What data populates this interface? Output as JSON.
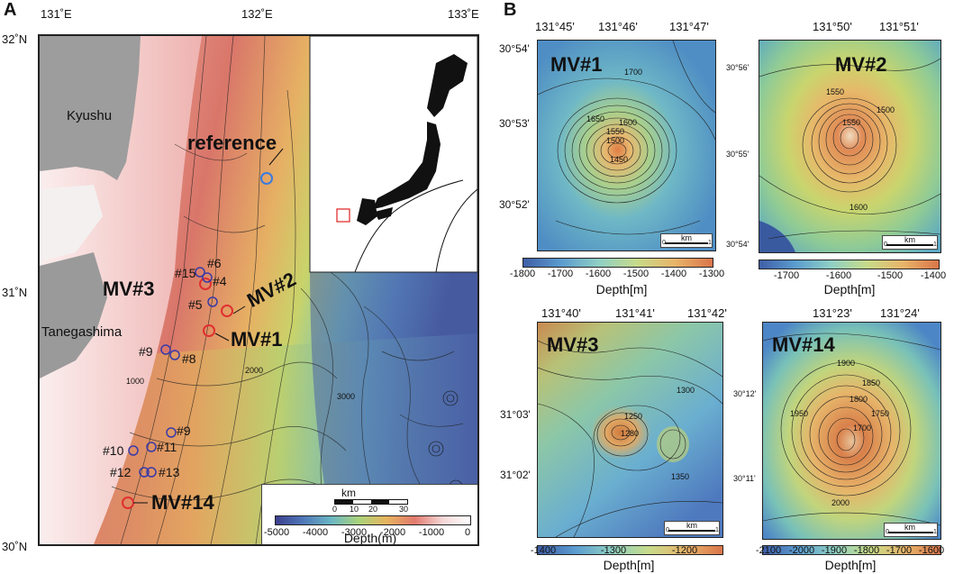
{
  "panelA": {
    "letter": "A",
    "top_ticks": [
      "131˚E",
      "132˚E",
      "133˚E"
    ],
    "left_ticks": [
      "32˚N",
      "31˚N",
      "30˚N"
    ],
    "places": {
      "kyushu": "Kyushu",
      "tanegashima": "Tanegashima"
    },
    "reference_label": "reference",
    "mv_labels": {
      "mv1": "MV#1",
      "mv2": "MV#2",
      "mv3": "MV#3",
      "mv14": "MV#14"
    },
    "site_numbers": [
      "#6",
      "#15",
      "#4",
      "#5",
      "#9",
      "#8",
      "#9",
      "#10",
      "#11",
      "#12",
      "#13"
    ],
    "contour_labels": [
      "2000",
      "3000",
      "1000"
    ],
    "scalebar": {
      "unit": "km",
      "ticks": [
        "0",
        "10",
        "20",
        "30"
      ]
    },
    "colorbar": {
      "ticks": [
        "-5000",
        "-4000",
        "-3000",
        "-2000",
        "-1000",
        "0"
      ],
      "title": "Depth(m)"
    }
  },
  "panelB": {
    "letter": "B",
    "maps": [
      {
        "title": "MV#1",
        "top_ticks": [
          "131°45'",
          "131°46'",
          "131°47'"
        ],
        "left_ticks": [
          "30°54'",
          "30°53'",
          "30°52'"
        ],
        "contours": [
          "1700",
          "1650",
          "1600",
          "1550",
          "1500",
          "1450"
        ],
        "scale": {
          "unit": "km",
          "ticks": [
            "0",
            "1"
          ]
        },
        "colorbar": {
          "ticks": [
            "-1800",
            "-1700",
            "-1600",
            "-1500",
            "-1400",
            "-1300"
          ],
          "title": "Depth[m]"
        }
      },
      {
        "title": "MV#2",
        "top_ticks": [
          "131°50'",
          "131°51'"
        ],
        "left_ticks": [
          "30°56'",
          "30°55'",
          "30°54'"
        ],
        "contours": [
          "1550",
          "1500",
          "1550",
          "1600"
        ],
        "scale": {
          "unit": "km",
          "ticks": [
            "0",
            "1"
          ]
        },
        "colorbar": {
          "ticks": [
            "-1700",
            "-1600",
            "-1500",
            "-1400"
          ],
          "title": "Depth[m]"
        }
      },
      {
        "title": "MV#3",
        "top_ticks": [
          "131°40'",
          "131°41'",
          "131°42'"
        ],
        "left_ticks": [
          "31°03'",
          "31°02'"
        ],
        "contours": [
          "1300",
          "1250",
          "1280",
          "1350"
        ],
        "scale": {
          "unit": "km",
          "ticks": [
            "0",
            "1"
          ]
        },
        "colorbar": {
          "ticks": [
            "-1400",
            "-1300",
            "-1200"
          ],
          "title": "Depth[m]"
        }
      },
      {
        "title": "MV#14",
        "top_ticks": [
          "131°23'",
          "131°24'"
        ],
        "left_ticks": [
          "30°12'",
          "30°11'"
        ],
        "contours": [
          "1900",
          "1850",
          "1800",
          "1750",
          "1700",
          "1950",
          "2000"
        ],
        "scale": {
          "unit": "km",
          "ticks": [
            "0",
            "1"
          ]
        },
        "colorbar": {
          "ticks": [
            "-2100",
            "-2000",
            "-1900",
            "-1800",
            "-1700",
            "-1600"
          ],
          "title": "Depth[m]"
        }
      }
    ]
  }
}
